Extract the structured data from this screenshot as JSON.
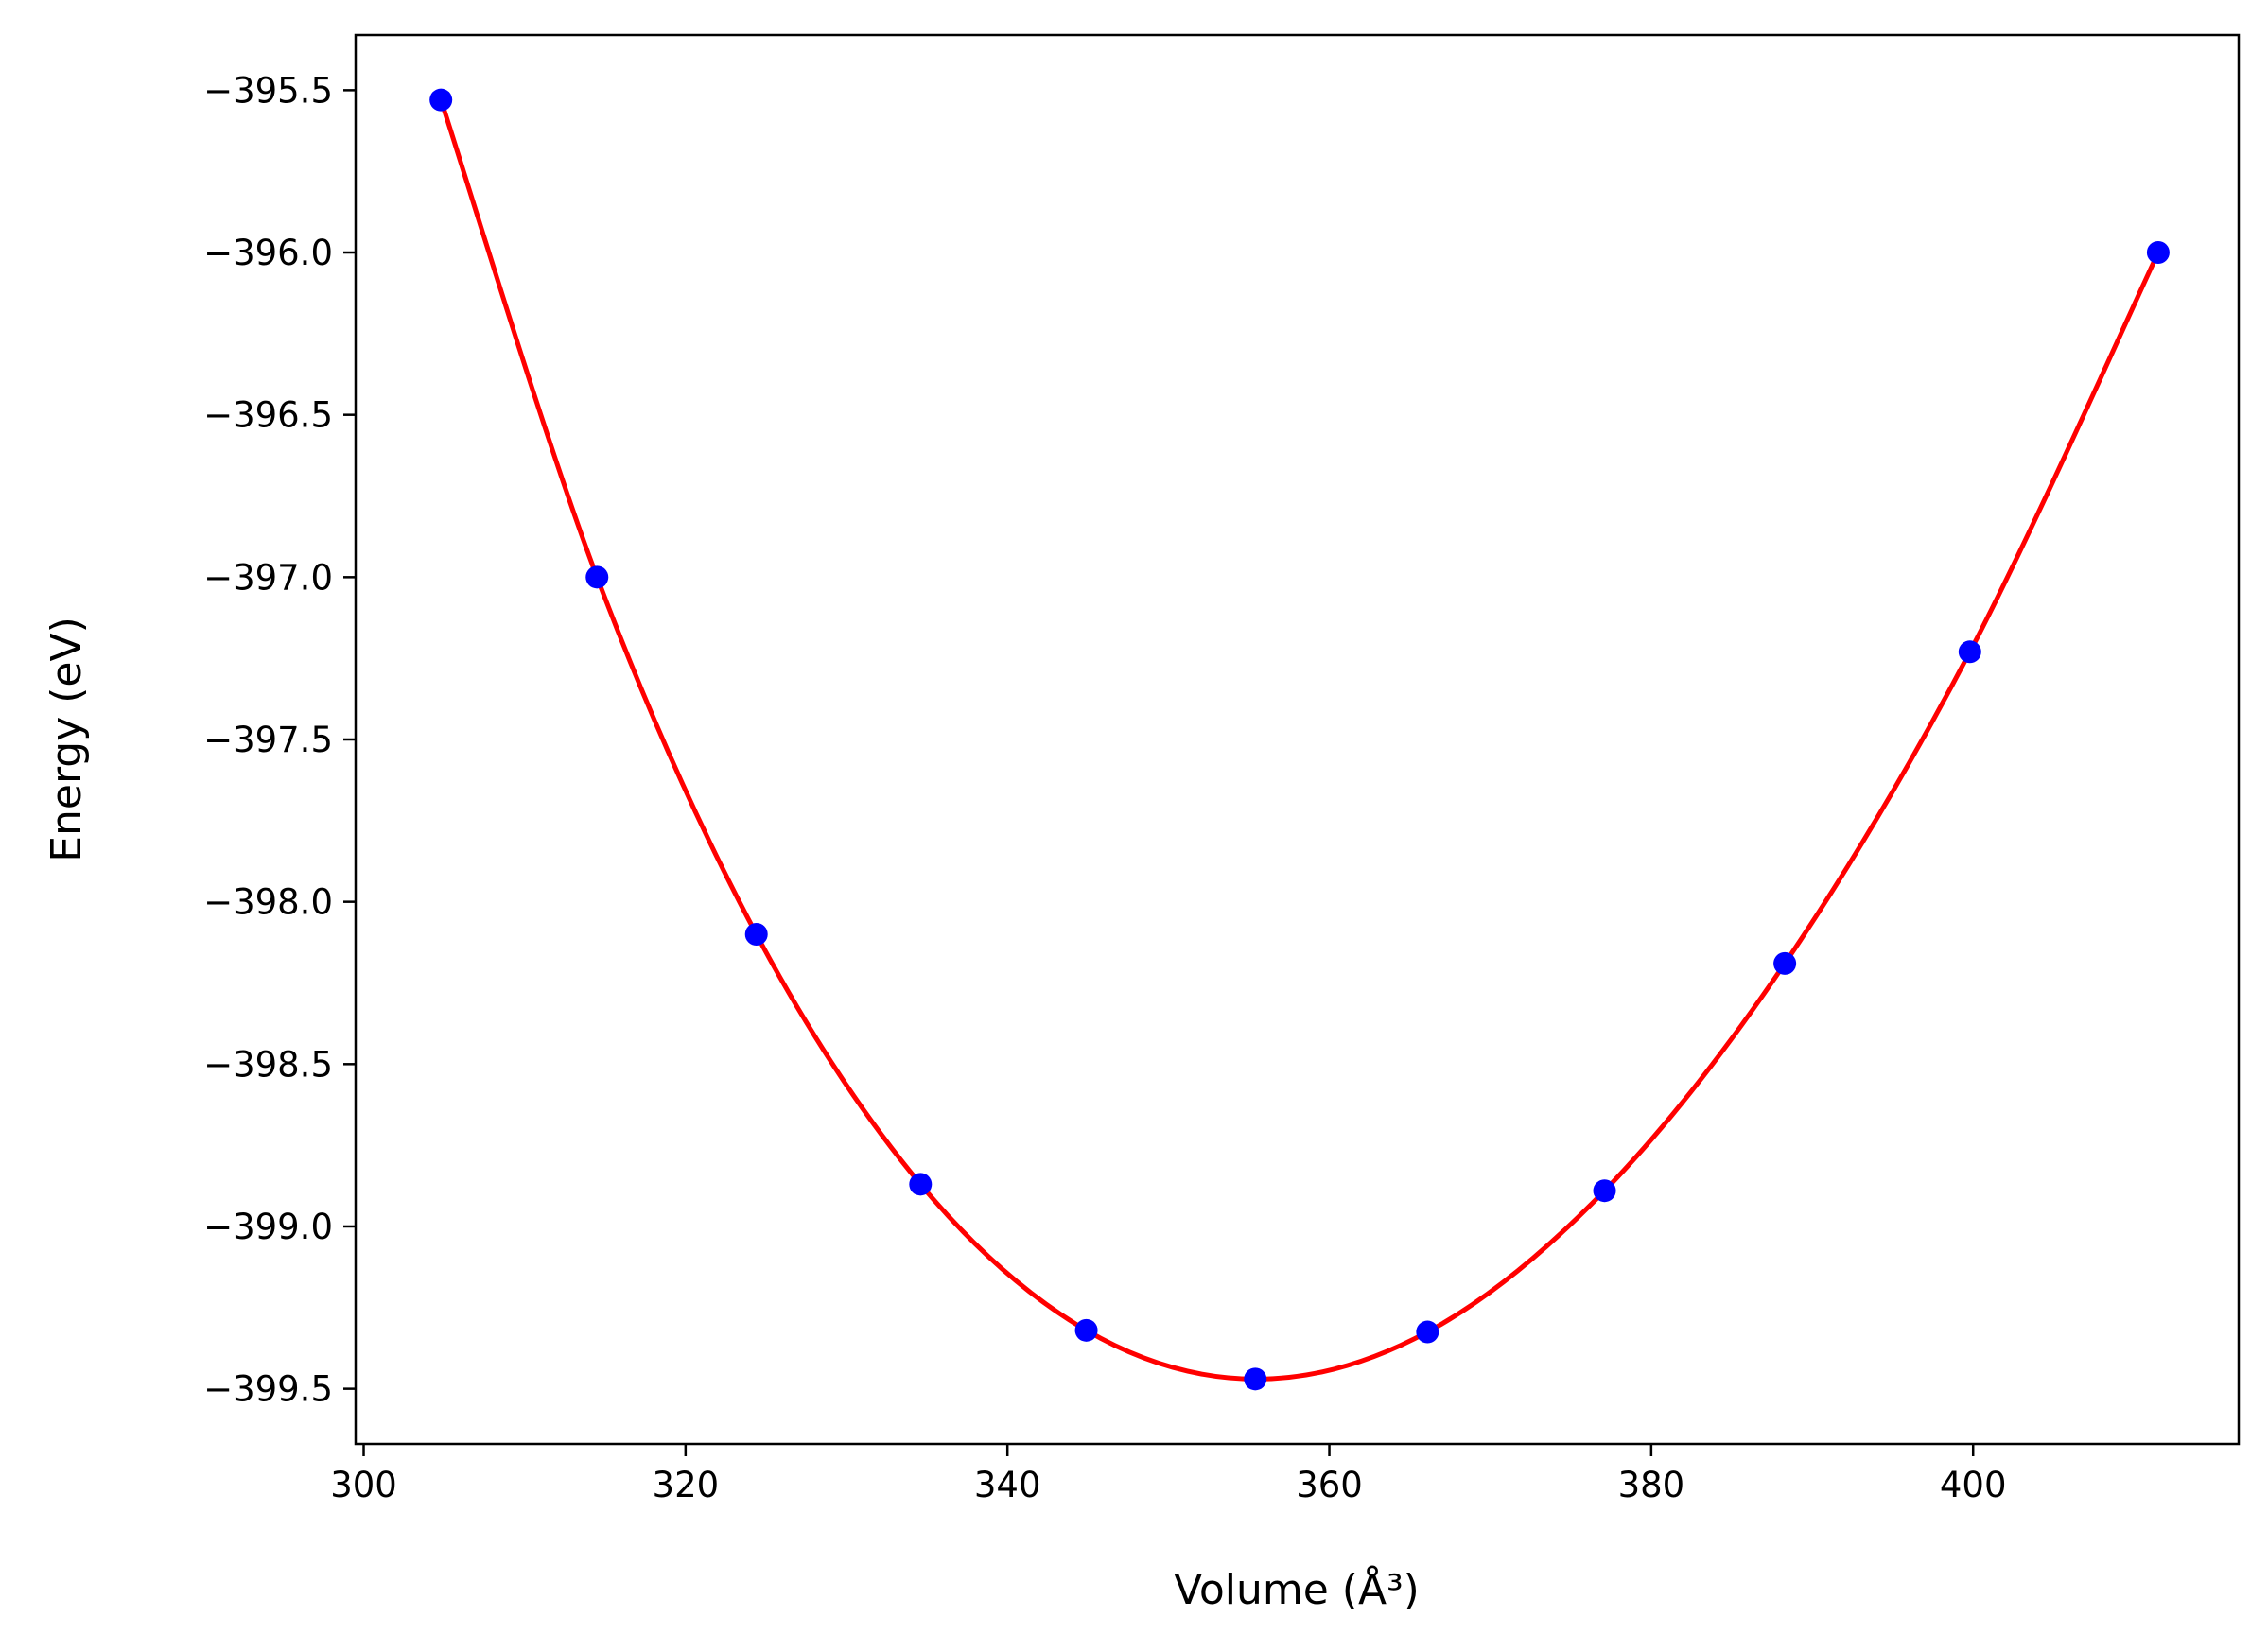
{
  "chart_data": {
    "type": "scatter",
    "xlabel": "Volume (Å³)",
    "ylabel": "Energy (eV)",
    "xlim": [
      299.5,
      416.5
    ],
    "ylim": [
      -399.67,
      -395.33
    ],
    "x_ticks": [
      300,
      320,
      340,
      360,
      380,
      400
    ],
    "y_ticks": [
      -395.5,
      -396.0,
      -396.5,
      -397.0,
      -397.5,
      -398.0,
      -398.5,
      -399.0,
      -399.5
    ],
    "x_tick_labels": [
      "300",
      "320",
      "340",
      "360",
      "380",
      "400"
    ],
    "y_tick_labels": [
      "−395.5",
      "−396.0",
      "−396.5",
      "−397.0",
      "−397.5",
      "−398.0",
      "−398.5",
      "−399.0",
      "−399.5"
    ],
    "grid": false,
    "legend": "none",
    "series": [
      {
        "kind": "points",
        "color": "#0000ff",
        "x": [
          304.8,
          314.5,
          324.4,
          334.6,
          344.9,
          355.4,
          366.1,
          377.1,
          388.3,
          399.8,
          411.5
        ],
        "y": [
          -395.53,
          -397.0,
          -398.1,
          -398.87,
          -399.32,
          -399.47,
          -399.325,
          -398.89,
          -398.19,
          -397.23,
          -396.0
        ]
      },
      {
        "kind": "fit",
        "color": "#ff0000",
        "x": [
          304.8,
          314.5,
          324.4,
          334.6,
          344.9,
          355.4,
          366.1,
          377.1,
          388.3,
          399.8,
          411.5
        ],
        "y": [
          -395.53,
          -397.0,
          -398.1,
          -398.87,
          -399.32,
          -399.47,
          -399.325,
          -398.89,
          -398.19,
          -397.23,
          -396.0
        ]
      }
    ]
  }
}
